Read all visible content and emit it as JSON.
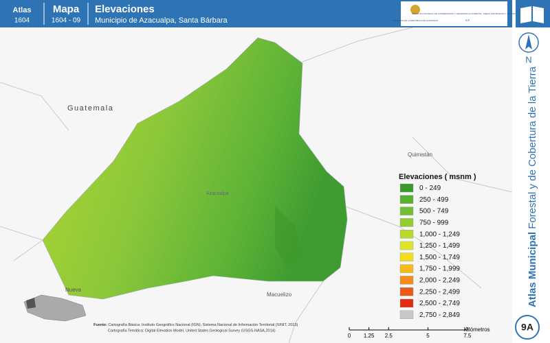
{
  "header": {
    "atlas_label": "Atlas",
    "atlas_number": "1604",
    "map_label": "Mapa",
    "map_number": "1604 - 09",
    "title": "Elevaciones",
    "subtitle": "Municipio de Azacualpa, Santa Bárbara",
    "logo_left": "GOBIERNO DE LA REPÚBLICA DE HONDURAS",
    "logo_right": "INSTITUTO NACIONAL DE CONSERVACIÓN Y DESARROLLO FORESTAL, ÁREAS PROTEGIDAS Y VIDA SILVESTRE",
    "logo_right_short": "ICF"
  },
  "north": "N",
  "side": {
    "bold": "Atlas Municipal",
    "rest": "Forestal y de Cobertura de la Tierra",
    "badge": "9A"
  },
  "places": {
    "guatemala": "Guatemala",
    "quimistan": "Quimistán",
    "azacualpa": "Azacualpa",
    "nueva": "Nueva",
    "macuelizo": "Macuelizo"
  },
  "legend": {
    "title": "Elevaciones ( msnm )",
    "items": [
      {
        "label": "0 - 249",
        "color": "#3c9a2a"
      },
      {
        "label": "250 - 499",
        "color": "#58b032"
      },
      {
        "label": "500 - 749",
        "color": "#72bf36"
      },
      {
        "label": "750 - 999",
        "color": "#92cc30"
      },
      {
        "label": "1,000 - 1,249",
        "color": "#b6d92a"
      },
      {
        "label": "1,250 - 1,499",
        "color": "#dde42a"
      },
      {
        "label": "1,500 - 1,749",
        "color": "#f2de1e"
      },
      {
        "label": "1,750 - 1,999",
        "color": "#f5bb1a"
      },
      {
        "label": "2,000 - 2,249",
        "color": "#f28c1a"
      },
      {
        "label": "2,250 - 2,499",
        "color": "#ec5a18"
      },
      {
        "label": "2,500 - 2,749",
        "color": "#e02a14"
      },
      {
        "label": "2,750 - 2,849",
        "color": "#c8c8c8"
      }
    ]
  },
  "scale": {
    "ticks": [
      0,
      1.25,
      2.5,
      5,
      7.5
    ],
    "unit": "Kilómetros"
  },
  "source": {
    "label": "Fuente:",
    "line1": "Cartografía Básica: Instituto Geográfico Nacional (IGN), Sistema Nacional de Información Territorial (SINIT, 2013)",
    "line2": "Cartografía Temática: Digital Elevation Model, United States Geological Survey (USGS-NASA,2014)"
  }
}
